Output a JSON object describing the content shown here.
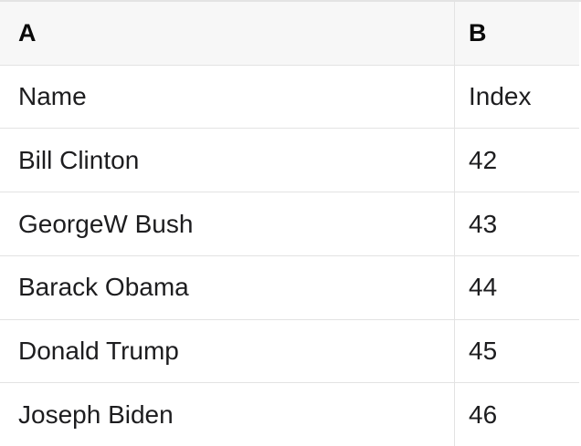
{
  "colors": {
    "header_bg": "#f7f7f7",
    "border_color": "#e3e3e3",
    "text_color": "#1d1d1f",
    "header_text_color": "#0a0a0a"
  },
  "spreadsheet": {
    "column_headers": [
      "A",
      "B"
    ],
    "rows": [
      [
        "Name",
        "Index"
      ],
      [
        "Bill Clinton",
        "42"
      ],
      [
        "GeorgeW Bush",
        "43"
      ],
      [
        "Barack Obama",
        "44"
      ],
      [
        "Donald Trump",
        "45"
      ],
      [
        "Joseph Biden",
        "46"
      ]
    ]
  }
}
